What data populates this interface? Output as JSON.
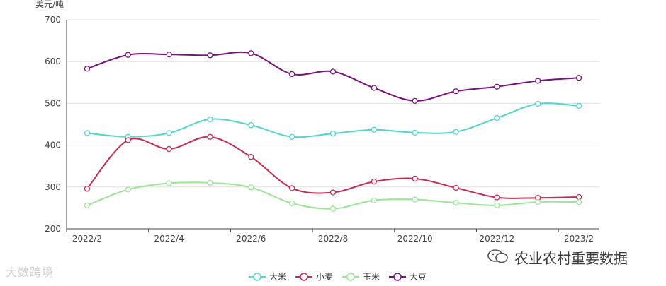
{
  "chart_data": {
    "type": "line",
    "ylabel": "美元/吨",
    "ylim": [
      200,
      700
    ],
    "yticks": [
      200,
      300,
      400,
      500,
      600,
      700
    ],
    "x": [
      "2022/2",
      "2022/3",
      "2022/4",
      "2022/5",
      "2022/6",
      "2022/7",
      "2022/8",
      "2022/9",
      "2022/10",
      "2022/11",
      "2022/12",
      "2023/1",
      "2023/2"
    ],
    "xtick_labels": [
      "2022/2",
      "2022/4",
      "2022/6",
      "2022/8",
      "2022/10",
      "2022/12",
      "2023/2"
    ],
    "grid": true,
    "legend_position": "bottom",
    "series": [
      {
        "name": "大米",
        "color": "#4dd8cf",
        "values": [
          429,
          420,
          429,
          462,
          448,
          420,
          428,
          437,
          430,
          432,
          465,
          499,
          494
        ]
      },
      {
        "name": "小麦",
        "color": "#c9284f",
        "values": [
          296,
          412,
          391,
          420,
          372,
          297,
          287,
          313,
          320,
          298,
          275,
          274,
          276
        ]
      },
      {
        "name": "玉米",
        "color": "#99e695",
        "values": [
          256,
          294,
          309,
          310,
          299,
          261,
          248,
          268,
          270,
          262,
          256,
          264,
          264
        ]
      },
      {
        "name": "大豆",
        "color": "#7a0f82",
        "values": [
          583,
          616,
          617,
          615,
          620,
          570,
          576,
          537,
          506,
          529,
          540,
          554,
          561
        ]
      }
    ]
  },
  "watermarks": {
    "left": "大数跨境",
    "right": "农业农村重要数据"
  }
}
